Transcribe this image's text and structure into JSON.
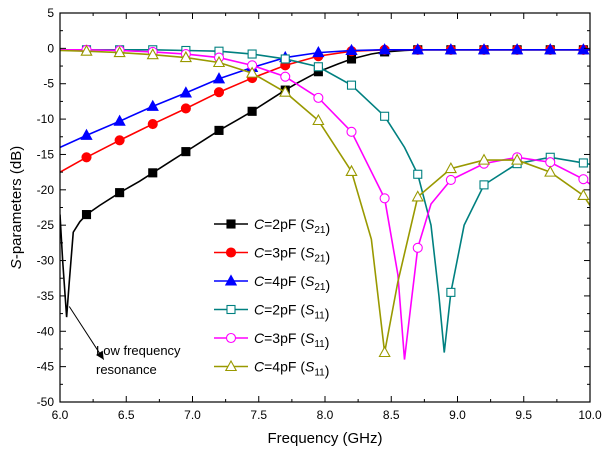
{
  "chart_data": {
    "type": "line",
    "xlabel": "Frequency (GHz)",
    "ylabel_parts": [
      {
        "text": "S",
        "italic": true
      },
      {
        "text": "-parameters (dB)",
        "italic": false
      }
    ],
    "xlim": [
      6.0,
      10.0
    ],
    "ylim": [
      -50,
      5
    ],
    "x_ticks": [
      6.0,
      6.5,
      7.0,
      7.5,
      8.0,
      8.5,
      9.0,
      9.5,
      10.0
    ],
    "x_tick_labels": [
      "6.0",
      "6.5",
      "7.0",
      "7.5",
      "8.0",
      "8.5",
      "9.0",
      "9.5",
      "10.0"
    ],
    "y_ticks": [
      5,
      0,
      -5,
      -10,
      -15,
      -20,
      -25,
      -30,
      -35,
      -40,
      -45,
      -50
    ],
    "y_tick_labels": [
      "5",
      "0",
      "-5",
      "-10",
      "-15",
      "-20",
      "-25",
      "-30",
      "-35",
      "-40",
      "-45",
      "-50"
    ],
    "grid": false,
    "legend_position": "center",
    "series": [
      {
        "name": "C=2pF (S21)",
        "legend": [
          {
            "text": "C",
            "italic": true
          },
          {
            "text": "=2pF (",
            "italic": false
          },
          {
            "text": "S",
            "italic": true
          },
          {
            "text": "21",
            "sub": true
          },
          {
            "text": ")",
            "italic": false
          }
        ],
        "color": "#000000",
        "marker": "square",
        "filled": true,
        "x": [
          6.0,
          6.02,
          6.05,
          6.07,
          6.1,
          6.15,
          6.2,
          6.3,
          6.45,
          6.6,
          6.7,
          6.85,
          6.95,
          7.1,
          7.2,
          7.35,
          7.45,
          7.6,
          7.7,
          7.8,
          7.95,
          8.1,
          8.2,
          8.35,
          8.45,
          8.6,
          8.7,
          8.85,
          8.95,
          9.2,
          9.45,
          9.7,
          9.95,
          10.0
        ],
        "y": [
          -23.5,
          -30,
          -38,
          -33,
          -26,
          -24.5,
          -23.5,
          -22.2,
          -20.4,
          -18.8,
          -17.6,
          -15.8,
          -14.6,
          -12.8,
          -11.6,
          -10.0,
          -8.9,
          -7.1,
          -5.9,
          -4.8,
          -3.3,
          -2.2,
          -1.5,
          -0.8,
          -0.5,
          -0.3,
          -0.2,
          -0.2,
          -0.2,
          -0.2,
          -0.2,
          -0.2,
          -0.2,
          -0.2
        ],
        "marker_x": [
          6.2,
          6.45,
          6.7,
          6.95,
          7.2,
          7.45,
          7.7,
          7.95,
          8.2,
          8.45,
          8.7,
          8.95,
          9.2,
          9.45,
          9.7,
          9.95
        ]
      },
      {
        "name": "C=3pF (S21)",
        "legend": [
          {
            "text": "C",
            "italic": true
          },
          {
            "text": "=3pF (",
            "italic": false
          },
          {
            "text": "S",
            "italic": true
          },
          {
            "text": "21",
            "sub": true
          },
          {
            "text": ")",
            "italic": false
          }
        ],
        "color": "#ff0000",
        "marker": "circle",
        "filled": true,
        "x": [
          6.0,
          6.2,
          6.45,
          6.7,
          6.95,
          7.2,
          7.45,
          7.7,
          7.95,
          8.2,
          8.45,
          8.7,
          8.95,
          9.2,
          9.45,
          9.7,
          9.95,
          10.0
        ],
        "y": [
          -17.5,
          -15.4,
          -13.0,
          -10.7,
          -8.5,
          -6.2,
          -4.2,
          -2.4,
          -1.1,
          -0.4,
          -0.2,
          -0.2,
          -0.2,
          -0.2,
          -0.2,
          -0.2,
          -0.2,
          -0.2
        ],
        "marker_x": [
          6.2,
          6.45,
          6.7,
          6.95,
          7.2,
          7.45,
          7.7,
          7.95,
          8.2,
          8.45,
          8.7,
          8.95,
          9.2,
          9.45,
          9.7,
          9.95
        ]
      },
      {
        "name": "C=4pF (S21)",
        "legend": [
          {
            "text": "C",
            "italic": true
          },
          {
            "text": "=4pF (",
            "italic": false
          },
          {
            "text": "S",
            "italic": true
          },
          {
            "text": "21",
            "sub": true
          },
          {
            "text": ")",
            "italic": false
          }
        ],
        "color": "#0000ff",
        "marker": "triangle",
        "filled": true,
        "x": [
          6.0,
          6.2,
          6.45,
          6.7,
          6.95,
          7.2,
          7.45,
          7.7,
          7.95,
          8.2,
          8.45,
          8.7,
          8.95,
          9.2,
          9.45,
          9.7,
          9.95,
          10.0
        ],
        "y": [
          -14.0,
          -12.3,
          -10.3,
          -8.2,
          -6.3,
          -4.3,
          -2.7,
          -1.3,
          -0.6,
          -0.3,
          -0.2,
          -0.2,
          -0.2,
          -0.2,
          -0.2,
          -0.2,
          -0.2,
          -0.2
        ],
        "marker_x": [
          6.2,
          6.45,
          6.7,
          6.95,
          7.2,
          7.45,
          7.7,
          7.95,
          8.2,
          8.45,
          8.7,
          8.95,
          9.2,
          9.45,
          9.7,
          9.95
        ]
      },
      {
        "name": "C=2pF (S11)",
        "legend": [
          {
            "text": "C",
            "italic": true
          },
          {
            "text": "=2pF (",
            "italic": false
          },
          {
            "text": "S",
            "italic": true
          },
          {
            "text": "11",
            "sub": true
          },
          {
            "text": ")",
            "italic": false
          }
        ],
        "color": "#008080",
        "marker": "square",
        "filled": false,
        "x": [
          6.0,
          6.2,
          6.45,
          6.7,
          6.95,
          7.2,
          7.45,
          7.7,
          7.95,
          8.2,
          8.45,
          8.6,
          8.7,
          8.8,
          8.86,
          8.9,
          8.95,
          9.05,
          9.2,
          9.45,
          9.7,
          9.95,
          10.0
        ],
        "y": [
          -0.2,
          -0.2,
          -0.2,
          -0.2,
          -0.3,
          -0.4,
          -0.8,
          -1.5,
          -2.6,
          -5.2,
          -9.6,
          -14.0,
          -17.8,
          -25.0,
          -35.0,
          -43.0,
          -34.5,
          -25.0,
          -19.3,
          -16.3,
          -15.4,
          -16.2,
          -16.4
        ],
        "marker_x": [
          6.2,
          6.45,
          6.7,
          6.95,
          7.2,
          7.45,
          7.7,
          7.95,
          8.2,
          8.45,
          8.7,
          8.95,
          9.2,
          9.45,
          9.7,
          9.95
        ]
      },
      {
        "name": "C=3pF (S11)",
        "legend": [
          {
            "text": "C",
            "italic": true
          },
          {
            "text": "=3pF (",
            "italic": false
          },
          {
            "text": "S",
            "italic": true
          },
          {
            "text": "11",
            "sub": true
          },
          {
            "text": ")",
            "italic": false
          }
        ],
        "color": "#ff00ff",
        "marker": "circle",
        "filled": false,
        "x": [
          6.0,
          6.2,
          6.45,
          6.7,
          6.95,
          7.2,
          7.45,
          7.7,
          7.95,
          8.2,
          8.45,
          8.55,
          8.6,
          8.65,
          8.7,
          8.8,
          8.95,
          9.2,
          9.45,
          9.7,
          9.95,
          10.0
        ],
        "y": [
          -0.2,
          -0.2,
          -0.3,
          -0.5,
          -0.8,
          -1.3,
          -2.4,
          -4.0,
          -7.0,
          -11.8,
          -21.2,
          -32.0,
          -44.0,
          -36.0,
          -28.2,
          -22.0,
          -18.6,
          -16.3,
          -15.4,
          -16.1,
          -18.5,
          -19.2
        ],
        "marker_x": [
          6.2,
          6.45,
          6.7,
          6.95,
          7.2,
          7.45,
          7.7,
          7.95,
          8.2,
          8.45,
          8.7,
          8.95,
          9.2,
          9.45,
          9.7,
          9.95
        ]
      },
      {
        "name": "C=4pF (S11)",
        "legend": [
          {
            "text": "C",
            "italic": true
          },
          {
            "text": "=4pF (",
            "italic": false
          },
          {
            "text": "S",
            "italic": true
          },
          {
            "text": "11",
            "sub": true
          },
          {
            "text": ")",
            "italic": false
          }
        ],
        "color": "#999900",
        "marker": "triangle",
        "filled": false,
        "x": [
          6.0,
          6.2,
          6.45,
          6.7,
          6.95,
          7.2,
          7.45,
          7.7,
          7.95,
          8.2,
          8.35,
          8.45,
          8.55,
          8.7,
          8.95,
          9.2,
          9.45,
          9.7,
          9.95,
          10.0
        ],
        "y": [
          -0.3,
          -0.4,
          -0.6,
          -0.9,
          -1.3,
          -2.0,
          -3.5,
          -6.2,
          -10.2,
          -17.4,
          -27.0,
          -43.0,
          -33.0,
          -21.0,
          -17.0,
          -15.8,
          -15.8,
          -17.5,
          -20.8,
          -22.2
        ],
        "marker_x": [
          6.2,
          6.45,
          6.7,
          6.95,
          7.2,
          7.45,
          7.7,
          7.95,
          8.2,
          8.45,
          8.7,
          8.95,
          9.2,
          9.45,
          9.7,
          9.95
        ]
      }
    ],
    "annotations": [
      {
        "lines": [
          "Low frequency",
          "resonance"
        ],
        "arrow_from": [
          6.07,
          -36.5
        ],
        "arrow_to": [
          6.33,
          -44.0
        ]
      }
    ]
  }
}
